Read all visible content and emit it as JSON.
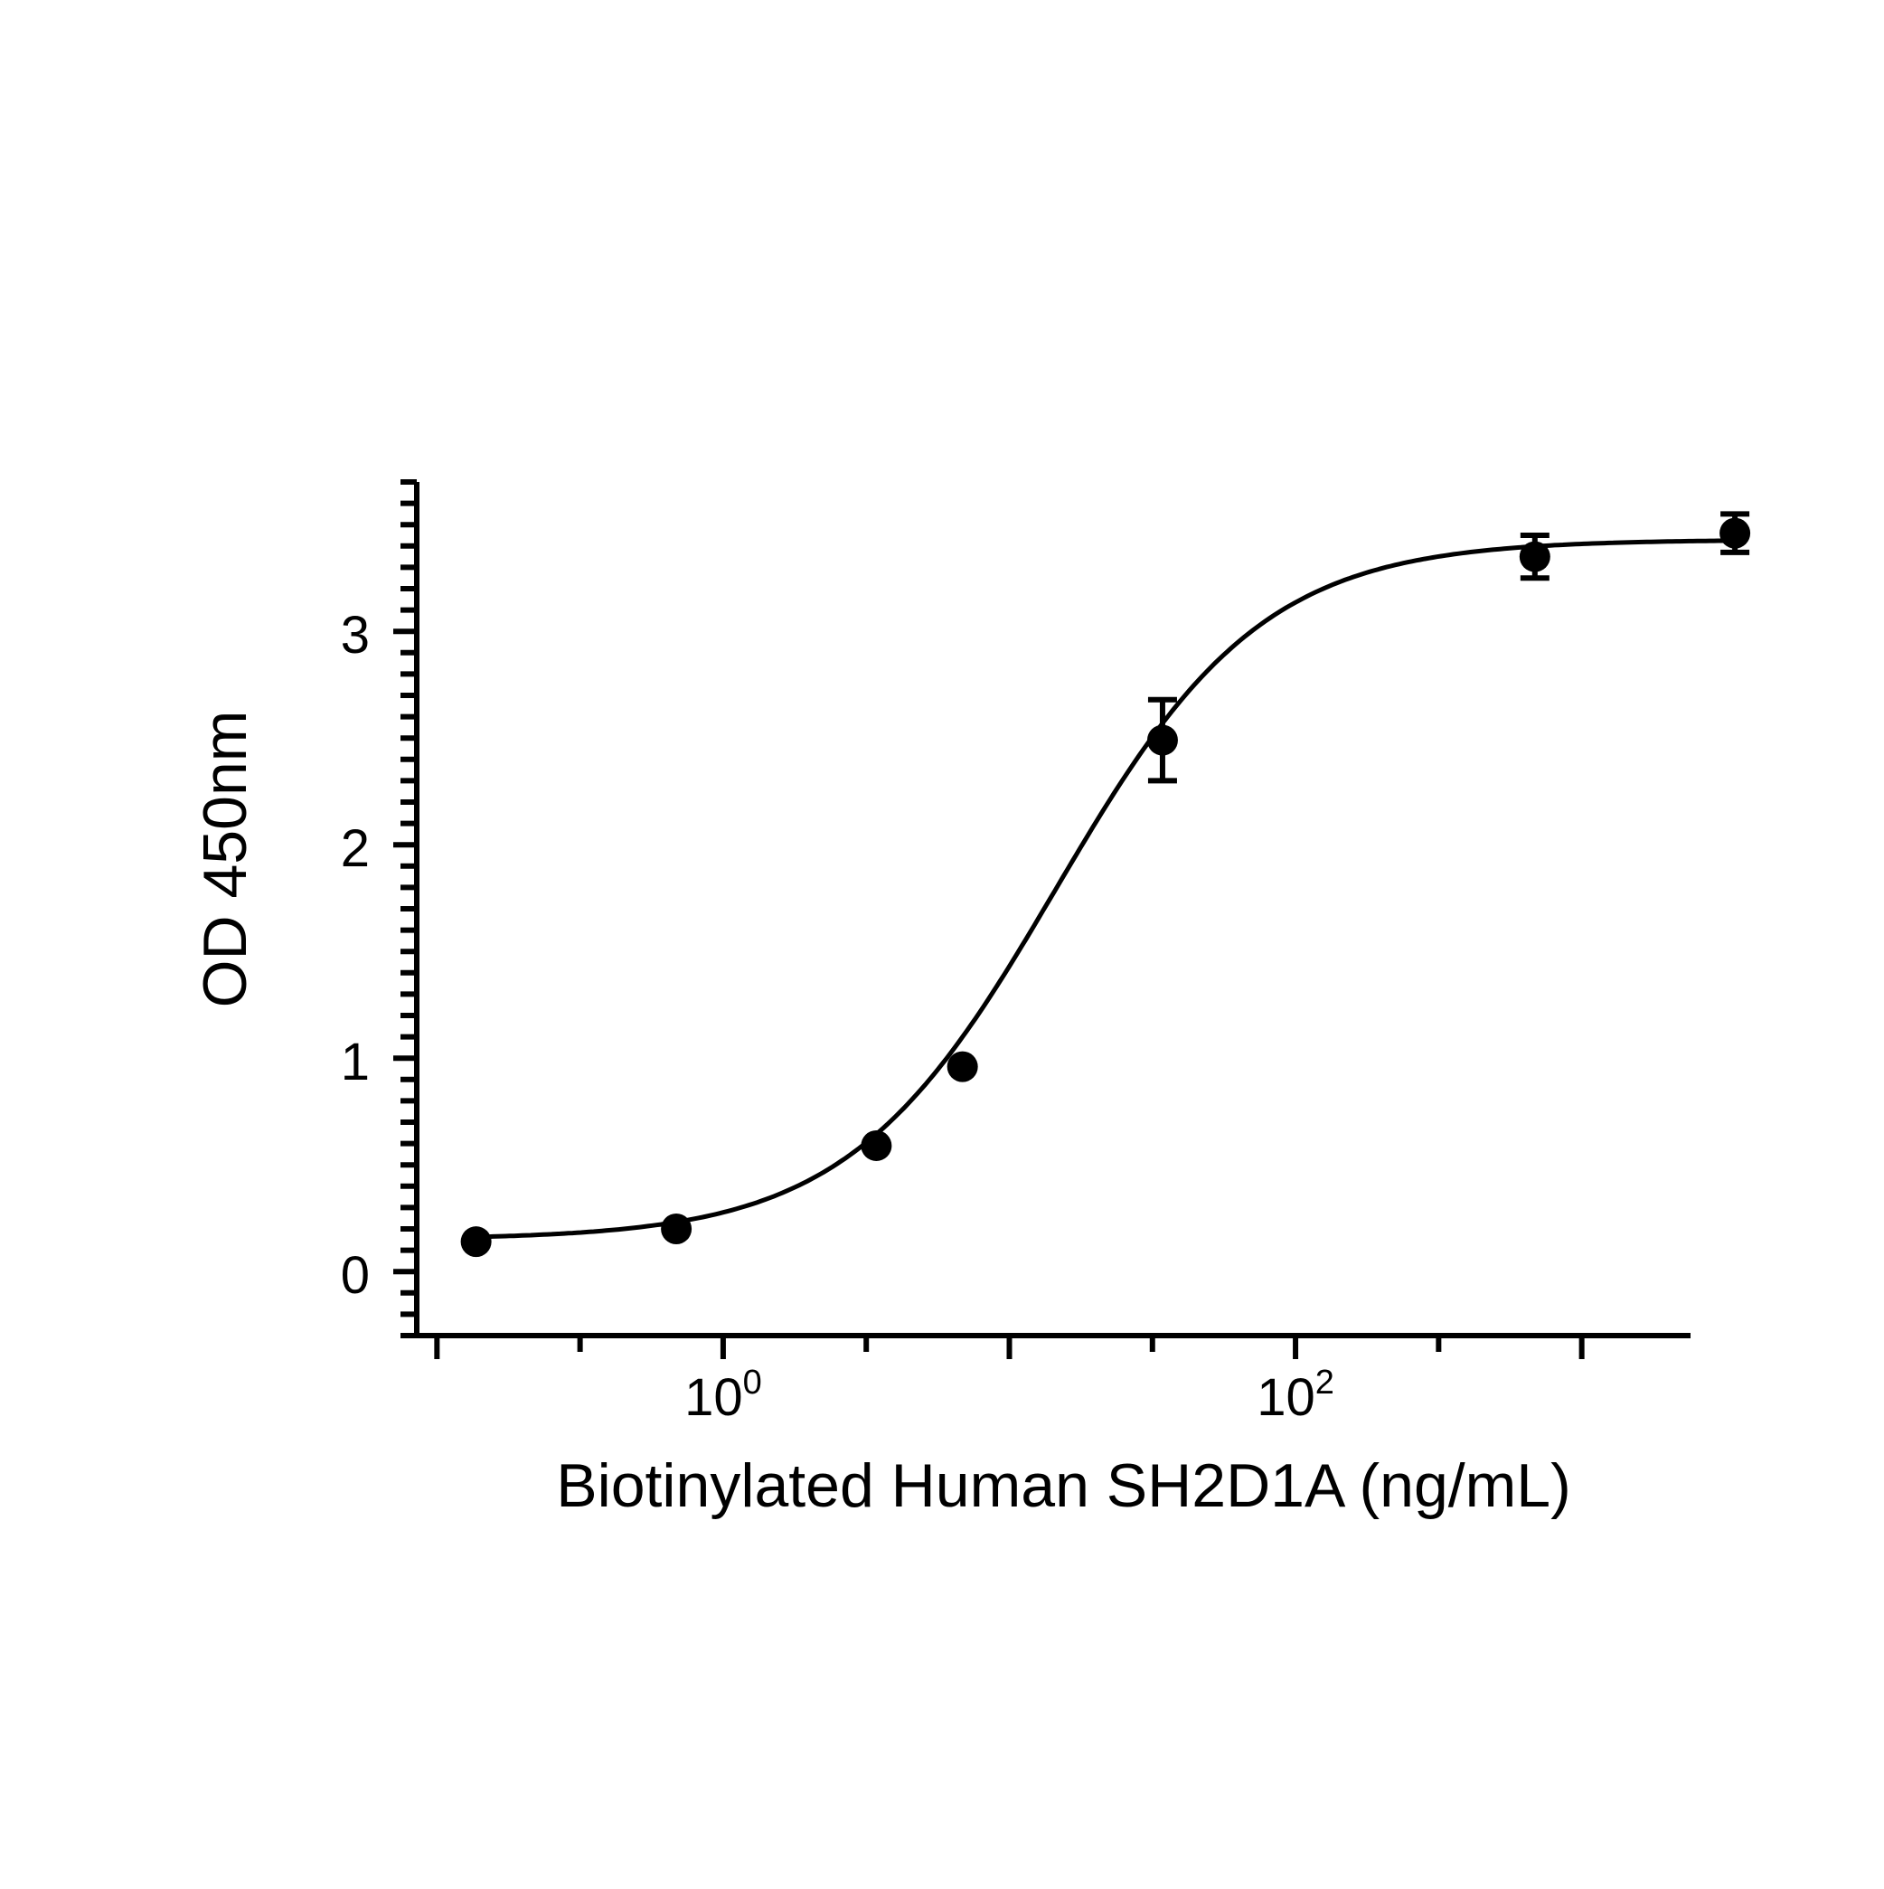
{
  "chart_data": {
    "type": "scatter",
    "x_scale": "log",
    "y_scale": "linear",
    "title": "",
    "xlabel": "Biotinylated Human SH2D1A (ng/mL)",
    "ylabel": "OD 450nm",
    "xlim": [
      0.085,
      2400
    ],
    "ylim": [
      -0.3,
      3.7
    ],
    "grid": false,
    "legend": "none",
    "x_ticks": [
      {
        "value": 1,
        "label_base": "10",
        "label_exp": "0"
      },
      {
        "value": 100,
        "label_base": "10",
        "label_exp": "2"
      }
    ],
    "y_ticks": [
      {
        "value": 0,
        "label": "0"
      },
      {
        "value": 1,
        "label": "1"
      },
      {
        "value": 2,
        "label": "2"
      },
      {
        "value": 3,
        "label": "3"
      }
    ],
    "series": [
      {
        "x": [
          0.137,
          0.686,
          3.43,
          6.86,
          34.3,
          686,
          3430
        ],
        "y": [
          0.14,
          0.2,
          0.59,
          0.96,
          2.49,
          3.35,
          3.46
        ],
        "y_err": [
          0.0,
          0.0,
          0.0,
          0.0,
          0.19,
          0.1,
          0.09
        ]
      }
    ],
    "fit_curve": {
      "model": "4PL",
      "bottom": 0.15,
      "top": 3.43,
      "ec50": 14.5,
      "hill": 1.2
    },
    "colors": {
      "axis": "#000000",
      "points": "#000000",
      "curve": "#000000"
    }
  }
}
